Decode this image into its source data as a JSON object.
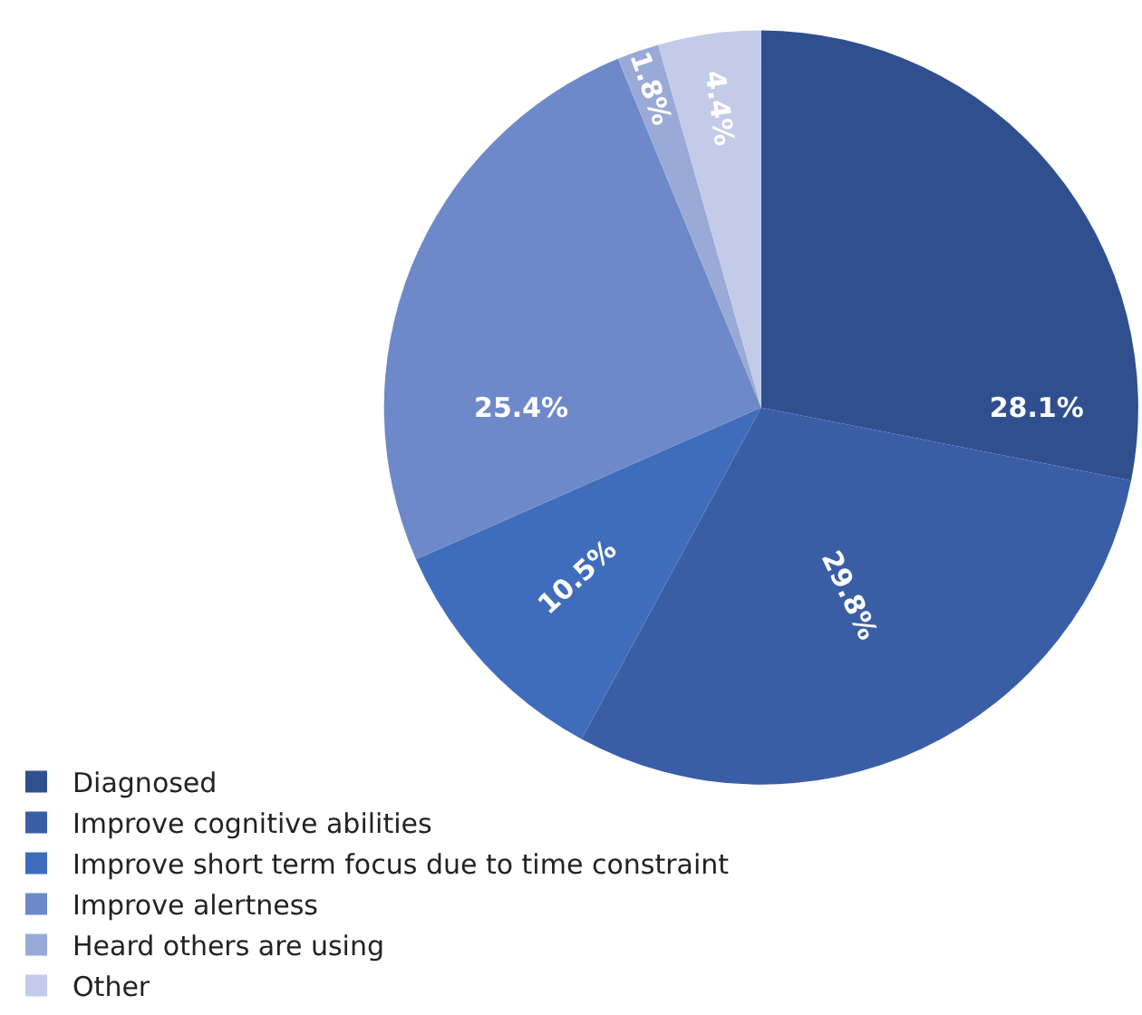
{
  "chart_data": {
    "type": "pie",
    "categories": [
      "Diagnosed",
      "Improve cognitive abilities",
      "Improve short term focus due to time constraint",
      "Improve alertness",
      "Heard others are using",
      "Other"
    ],
    "values": [
      28.1,
      29.8,
      10.5,
      25.4,
      1.8,
      4.4
    ],
    "value_labels": [
      "28.1%",
      "29.8%",
      "10.5%",
      "25.4%",
      "1.8%",
      "4.4%"
    ],
    "colors": [
      "#2f4f8f",
      "#3a5ea6",
      "#3f6dbb",
      "#6e89c9",
      "#9aaad6",
      "#c3cbe8"
    ],
    "legend": "bottom left"
  }
}
